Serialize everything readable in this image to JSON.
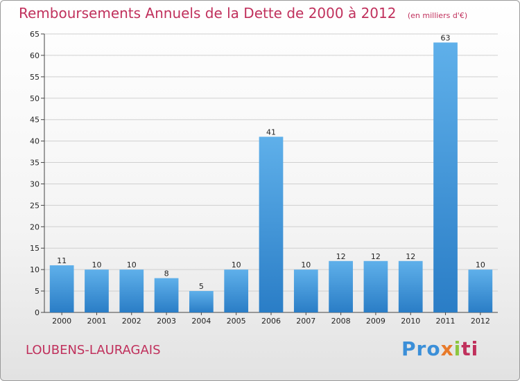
{
  "header": {
    "title": "Remboursements Annuels de la Dette de 2000 à 2012",
    "unit": "(en milliers d'€)"
  },
  "footer": {
    "commune": "LOUBENS-LAURAGAIS",
    "logo": [
      "Pro",
      "x",
      "i",
      "ti"
    ]
  },
  "colors": {
    "title": "#c0305c",
    "bar_top": "#5fb0ea",
    "bar_bottom": "#2a7dc6",
    "grid": "#cfcfcf"
  },
  "chart_data": {
    "type": "bar",
    "title": "Remboursements Annuels de la Dette de 2000 à 2012",
    "subtitle": "(en milliers d'€)",
    "categories": [
      "2000",
      "2001",
      "2002",
      "2003",
      "2004",
      "2005",
      "2006",
      "2007",
      "2008",
      "2009",
      "2010",
      "2011",
      "2012"
    ],
    "values": [
      11,
      10,
      10,
      8,
      5,
      10,
      41,
      10,
      12,
      12,
      12,
      63,
      10
    ],
    "ylim": [
      0,
      65
    ],
    "yticks": [
      0,
      5,
      10,
      15,
      20,
      25,
      30,
      35,
      40,
      45,
      50,
      55,
      60,
      65
    ],
    "grid": true,
    "data_labels": true
  }
}
